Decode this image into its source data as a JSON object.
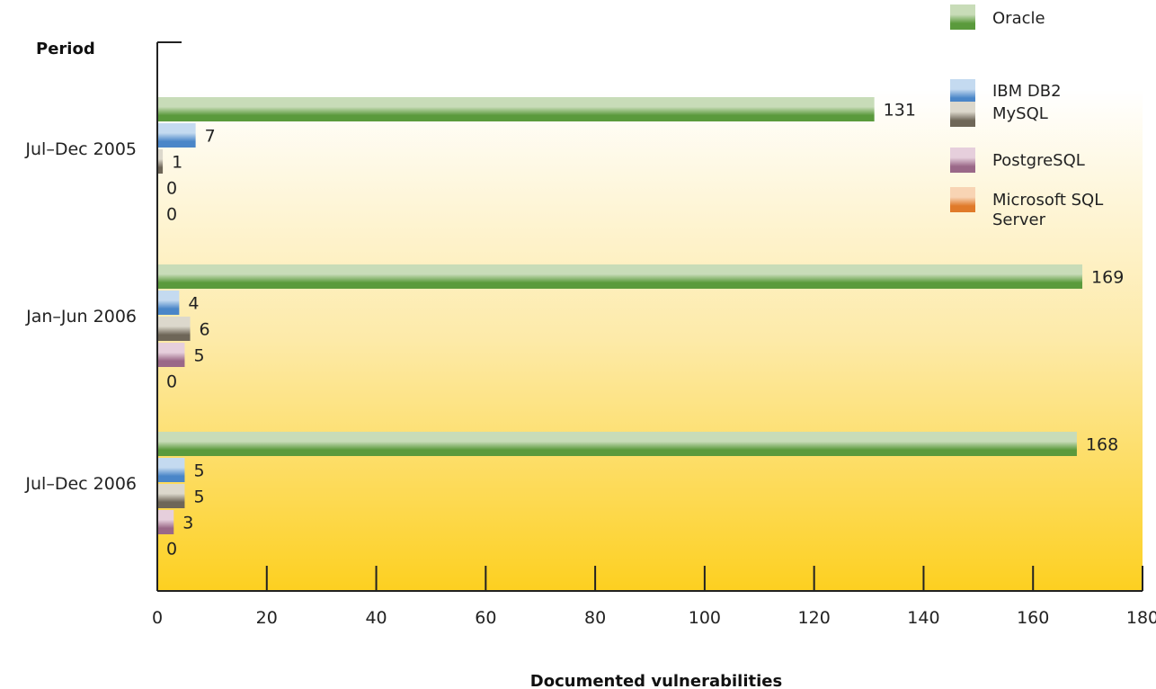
{
  "chart_data": {
    "type": "bar",
    "orientation": "horizontal",
    "title": "",
    "ylabel": "Period",
    "xlabel": "Documented vulnerabilities",
    "categories": [
      "Jul–Dec 2005",
      "Jan–Jun 2006",
      "Jul–Dec 2006"
    ],
    "series": [
      {
        "name": "Oracle",
        "values": [
          131,
          169,
          168
        ],
        "color": "#5a9a3c",
        "light": "#c8dcb8"
      },
      {
        "name": "IBM DB2",
        "values": [
          7,
          4,
          5
        ],
        "color": "#4a86c8",
        "light": "#c4daf0"
      },
      {
        "name": "MySQL",
        "values": [
          1,
          6,
          5
        ],
        "color": "#6e6658",
        "light": "#dcd8cc"
      },
      {
        "name": "PostgreSQL",
        "values": [
          0,
          5,
          3
        ],
        "color": "#9a6888",
        "light": "#e6cfdc"
      },
      {
        "name": "Microsoft SQL Server",
        "legend_lines": [
          "Microsoft SQL",
          "Server"
        ],
        "values": [
          0,
          0,
          0
        ],
        "color": "#e07a2a",
        "light": "#f8d4b4"
      }
    ],
    "xlim": [
      0,
      180
    ],
    "xticks": [
      0,
      20,
      40,
      60,
      80,
      100,
      120,
      140,
      160,
      180
    ],
    "grid": false,
    "legend_position": "top-right",
    "background_gradient": [
      "#ffffff",
      "#fdeaa8",
      "#fdd020"
    ]
  }
}
